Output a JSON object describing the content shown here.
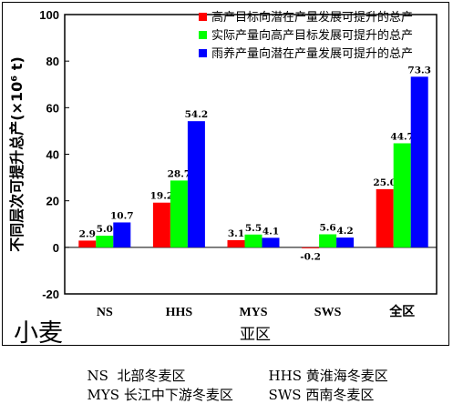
{
  "chart_data": {
    "type": "bar",
    "categories": [
      "NS",
      "HHS",
      "MYS",
      "SWS",
      "全区"
    ],
    "series": [
      {
        "name": "高产目标向潜在产量发展可提升的总产",
        "color": "#ff0000",
        "values": [
          2.9,
          19.2,
          3.1,
          -0.2,
          25.0
        ],
        "labels": [
          "2.9",
          "19.2",
          "3.1",
          "-0.2",
          "25.0"
        ]
      },
      {
        "name": "实际产量向高产目标发展可提升的总产",
        "color": "#00ff00",
        "values": [
          5.0,
          28.7,
          5.5,
          5.6,
          44.7
        ],
        "labels": [
          "5.0",
          "28.7",
          "5.5",
          "5.6",
          "44.7"
        ]
      },
      {
        "name": "雨养产量向潜在产量发展可提升的总产",
        "color": "#0000ff",
        "values": [
          10.7,
          54.2,
          4.1,
          4.2,
          73.3
        ],
        "labels": [
          "10.7",
          "54.2",
          "4.1",
          "4.2",
          "73.3"
        ]
      }
    ],
    "ylabel": "不同层次可提升总产(×10⁶ t)",
    "xlabel": "亚区",
    "ylim": [
      -20,
      100
    ],
    "yticks": [
      "-20",
      "0",
      "20",
      "40",
      "60",
      "80",
      "100"
    ],
    "annotation": "小麦",
    "legend_position": "top-right",
    "grid": false
  },
  "abbreviations": [
    {
      "code": "NS",
      "name": "北部冬麦区"
    },
    {
      "code": "HHS",
      "name": "黄淮海冬麦区"
    },
    {
      "code": "MYS",
      "name": "长江中下游冬麦区"
    },
    {
      "code": "SWS",
      "name": "西南冬麦区"
    }
  ]
}
